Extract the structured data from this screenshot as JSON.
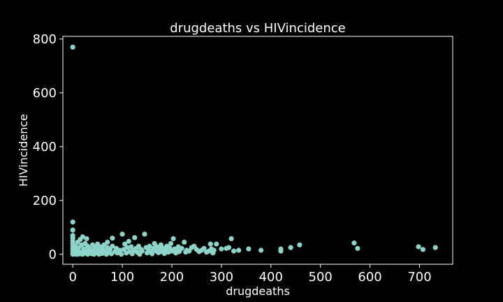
{
  "chart_data": {
    "type": "scatter",
    "title": "drugdeaths vs HIVincidence",
    "xlabel": "drugdeaths",
    "ylabel": "HIVincidence",
    "xlim": [
      -20,
      767
    ],
    "ylim": [
      -37,
      810
    ],
    "xticks": [
      0,
      100,
      200,
      300,
      400,
      500,
      600,
      700
    ],
    "yticks": [
      0,
      200,
      400,
      600,
      800
    ],
    "grid": false,
    "colors": {
      "background": "#000000",
      "axes": "#ffffff",
      "text": "#ffffff",
      "marker": "#8dd3c7"
    },
    "points": [
      {
        "x": 0,
        "y": 770
      },
      {
        "x": 0,
        "y": 120
      },
      {
        "x": 0,
        "y": 90
      },
      {
        "x": 0,
        "y": 70
      },
      {
        "x": 0,
        "y": 60
      },
      {
        "x": 0,
        "y": 50
      },
      {
        "x": 0,
        "y": 40
      },
      {
        "x": 0,
        "y": 30
      },
      {
        "x": 0,
        "y": 20
      },
      {
        "x": 0,
        "y": 10
      },
      {
        "x": 0,
        "y": 0
      },
      {
        "x": 3,
        "y": 5
      },
      {
        "x": 5,
        "y": 30
      },
      {
        "x": 6,
        "y": 0
      },
      {
        "x": 8,
        "y": 15
      },
      {
        "x": 10,
        "y": 45
      },
      {
        "x": 10,
        "y": 0
      },
      {
        "x": 12,
        "y": 25
      },
      {
        "x": 14,
        "y": 8
      },
      {
        "x": 15,
        "y": 55
      },
      {
        "x": 15,
        "y": 2
      },
      {
        "x": 18,
        "y": 35
      },
      {
        "x": 20,
        "y": 10
      },
      {
        "x": 20,
        "y": 0
      },
      {
        "x": 22,
        "y": 20
      },
      {
        "x": 25,
        "y": 5
      },
      {
        "x": 25,
        "y": 40
      },
      {
        "x": 28,
        "y": 15
      },
      {
        "x": 30,
        "y": 0
      },
      {
        "x": 30,
        "y": 30
      },
      {
        "x": 33,
        "y": 8
      },
      {
        "x": 35,
        "y": 20
      },
      {
        "x": 38,
        "y": 2
      },
      {
        "x": 40,
        "y": 35
      },
      {
        "x": 40,
        "y": 12
      },
      {
        "x": 43,
        "y": 0
      },
      {
        "x": 45,
        "y": 25
      },
      {
        "x": 48,
        "y": 6
      },
      {
        "x": 50,
        "y": 15
      },
      {
        "x": 50,
        "y": 38
      },
      {
        "x": 53,
        "y": 0
      },
      {
        "x": 55,
        "y": 28
      },
      {
        "x": 58,
        "y": 10
      },
      {
        "x": 60,
        "y": 20
      },
      {
        "x": 60,
        "y": 3
      },
      {
        "x": 63,
        "y": 35
      },
      {
        "x": 65,
        "y": 12
      },
      {
        "x": 68,
        "y": 0
      },
      {
        "x": 70,
        "y": 25
      },
      {
        "x": 73,
        "y": 8
      },
      {
        "x": 75,
        "y": 18
      },
      {
        "x": 78,
        "y": 2
      },
      {
        "x": 80,
        "y": 30
      },
      {
        "x": 80,
        "y": 60
      },
      {
        "x": 85,
        "y": 10
      },
      {
        "x": 88,
        "y": 22
      },
      {
        "x": 90,
        "y": 5
      },
      {
        "x": 95,
        "y": 15
      },
      {
        "x": 98,
        "y": 0
      },
      {
        "x": 20,
        "y": 65
      },
      {
        "x": 28,
        "y": 58
      },
      {
        "x": 70,
        "y": 45
      },
      {
        "x": 100,
        "y": 75
      },
      {
        "x": 103,
        "y": 18
      },
      {
        "x": 105,
        "y": 38
      },
      {
        "x": 108,
        "y": 5
      },
      {
        "x": 110,
        "y": 25
      },
      {
        "x": 113,
        "y": 48
      },
      {
        "x": 115,
        "y": 10
      },
      {
        "x": 118,
        "y": 28
      },
      {
        "x": 120,
        "y": 2
      },
      {
        "x": 123,
        "y": 15
      },
      {
        "x": 125,
        "y": 62
      },
      {
        "x": 128,
        "y": 22
      },
      {
        "x": 130,
        "y": 8
      },
      {
        "x": 133,
        "y": 30
      },
      {
        "x": 135,
        "y": 0
      },
      {
        "x": 138,
        "y": 18
      },
      {
        "x": 140,
        "y": 12
      },
      {
        "x": 145,
        "y": 75
      },
      {
        "x": 148,
        "y": 25
      },
      {
        "x": 150,
        "y": 5
      },
      {
        "x": 153,
        "y": 15
      },
      {
        "x": 155,
        "y": 30
      },
      {
        "x": 158,
        "y": 10
      },
      {
        "x": 160,
        "y": 2
      },
      {
        "x": 163,
        "y": 22
      },
      {
        "x": 165,
        "y": 40
      },
      {
        "x": 168,
        "y": 12
      },
      {
        "x": 170,
        "y": 28
      },
      {
        "x": 173,
        "y": 6
      },
      {
        "x": 175,
        "y": 18
      },
      {
        "x": 178,
        "y": 35
      },
      {
        "x": 180,
        "y": 10
      },
      {
        "x": 183,
        "y": 22
      },
      {
        "x": 185,
        "y": 3
      },
      {
        "x": 188,
        "y": 15
      },
      {
        "x": 190,
        "y": 30
      },
      {
        "x": 193,
        "y": 8
      },
      {
        "x": 195,
        "y": 25
      },
      {
        "x": 198,
        "y": 40
      },
      {
        "x": 200,
        "y": 12
      },
      {
        "x": 203,
        "y": 58
      },
      {
        "x": 205,
        "y": 20
      },
      {
        "x": 208,
        "y": 5
      },
      {
        "x": 210,
        "y": 15
      },
      {
        "x": 213,
        "y": 28
      },
      {
        "x": 215,
        "y": 10
      },
      {
        "x": 220,
        "y": 22
      },
      {
        "x": 225,
        "y": 45
      },
      {
        "x": 228,
        "y": 8
      },
      {
        "x": 230,
        "y": 15
      },
      {
        "x": 235,
        "y": 12
      },
      {
        "x": 240,
        "y": 25
      },
      {
        "x": 245,
        "y": 30
      },
      {
        "x": 250,
        "y": 18
      },
      {
        "x": 255,
        "y": 10
      },
      {
        "x": 260,
        "y": 15
      },
      {
        "x": 265,
        "y": 22
      },
      {
        "x": 270,
        "y": 8
      },
      {
        "x": 275,
        "y": 12
      },
      {
        "x": 278,
        "y": 38
      },
      {
        "x": 280,
        "y": 20
      },
      {
        "x": 283,
        "y": 5
      },
      {
        "x": 285,
        "y": 15
      },
      {
        "x": 290,
        "y": 38
      },
      {
        "x": 300,
        "y": 20
      },
      {
        "x": 310,
        "y": 22
      },
      {
        "x": 315,
        "y": 25
      },
      {
        "x": 320,
        "y": 58
      },
      {
        "x": 325,
        "y": 12
      },
      {
        "x": 335,
        "y": 15
      },
      {
        "x": 355,
        "y": 20
      },
      {
        "x": 380,
        "y": 15
      },
      {
        "x": 420,
        "y": 20
      },
      {
        "x": 420,
        "y": 12
      },
      {
        "x": 440,
        "y": 25
      },
      {
        "x": 458,
        "y": 35
      },
      {
        "x": 568,
        "y": 42
      },
      {
        "x": 575,
        "y": 22
      },
      {
        "x": 698,
        "y": 28
      },
      {
        "x": 707,
        "y": 18
      },
      {
        "x": 732,
        "y": 25
      }
    ]
  }
}
